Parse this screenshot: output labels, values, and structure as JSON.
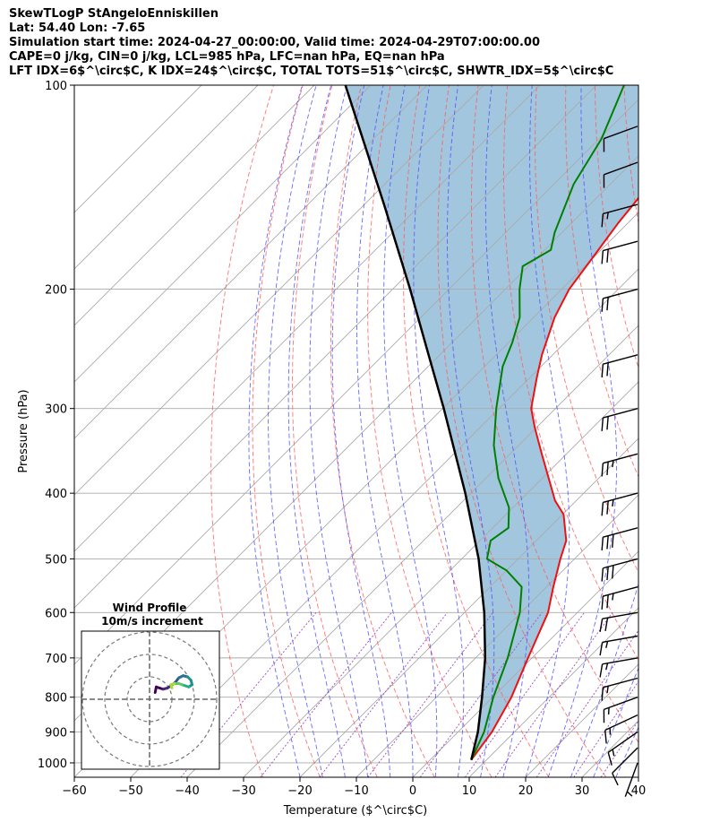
{
  "header": {
    "line1": "SkewTLogP StAngeloEnniskillen",
    "line2": "Lat: 54.40   Lon: -7.65",
    "line3": "Simulation start time: 2024-04-27_00:00:00, Valid time: 2024-04-29T07:00:00.00",
    "line4": "CAPE=0 j/kg, CIN=0 j/kg, LCL=985 hPa, LFC=nan hPa, EQ=nan hPa",
    "line5": "LFT IDX=6$^\\circ$C, K IDX=24$^\\circ$C, TOTAL TOTS=51$^\\circ$C, SHWTR_IDX=5$^\\circ$C"
  },
  "chart_data": {
    "type": "skewt",
    "xlabel": "Temperature ($^\\circ$C)",
    "ylabel": "Pressure (hPa)",
    "xlim": [
      -60,
      40
    ],
    "ylim": [
      1050,
      100
    ],
    "yscale": "log",
    "xticks": [
      -60,
      -50,
      -40,
      -30,
      -20,
      -10,
      0,
      10,
      20,
      30,
      40
    ],
    "xtick_labels": [
      "−60",
      "−50",
      "−40",
      "−30",
      "−20",
      "−10",
      "0",
      "10",
      "20",
      "30",
      "40"
    ],
    "yticks": [
      1000,
      900,
      800,
      700,
      600,
      500,
      400,
      300,
      200,
      100
    ],
    "ytick_labels": [
      "1000",
      "900",
      "800",
      "700",
      "600",
      "500",
      "400",
      "300",
      "200",
      "100"
    ],
    "grid": true,
    "colors": {
      "temperature": "#ee1111",
      "dewpoint": "#008000",
      "parcel": "#000000",
      "cin_fill": "#a3c6df",
      "dry_adiabat": "#ff5a5a",
      "moist_adiabat": "#4f4fff",
      "mixing_ratio": "#9b49c9",
      "isotherm": "#aaaaaa"
    },
    "temperature": [
      {
        "p": 990,
        "t": 7.3
      },
      {
        "p": 900,
        "t": 6.0
      },
      {
        "p": 800,
        "t": 3.3
      },
      {
        "p": 700,
        "t": -0.7
      },
      {
        "p": 600,
        "t": -5.2
      },
      {
        "p": 550,
        "t": -8.8
      },
      {
        "p": 500,
        "t": -12.5
      },
      {
        "p": 470,
        "t": -14.7
      },
      {
        "p": 430,
        "t": -19.8
      },
      {
        "p": 410,
        "t": -23.8
      },
      {
        "p": 350,
        "t": -34.4
      },
      {
        "p": 320,
        "t": -40.3
      },
      {
        "p": 300,
        "t": -44.3
      },
      {
        "p": 270,
        "t": -48.8
      },
      {
        "p": 250,
        "t": -51.9
      },
      {
        "p": 220,
        "t": -56.3
      },
      {
        "p": 200,
        "t": -58.7
      },
      {
        "p": 180,
        "t": -60.1
      },
      {
        "p": 160,
        "t": -61.7
      },
      {
        "p": 140,
        "t": -63.0
      },
      {
        "p": 120,
        "t": -64.1
      },
      {
        "p": 110,
        "t": -64.6
      },
      {
        "p": 100,
        "t": -65.0
      }
    ],
    "dewpoint": [
      {
        "p": 990,
        "t": 7.3
      },
      {
        "p": 900,
        "t": 4.6
      },
      {
        "p": 800,
        "t": 0.1
      },
      {
        "p": 700,
        "t": -4.3
      },
      {
        "p": 600,
        "t": -10.2
      },
      {
        "p": 550,
        "t": -14.4
      },
      {
        "p": 520,
        "t": -20.0
      },
      {
        "p": 500,
        "t": -25.5
      },
      {
        "p": 470,
        "t": -28.1
      },
      {
        "p": 450,
        "t": -27.2
      },
      {
        "p": 420,
        "t": -30.7
      },
      {
        "p": 380,
        "t": -37.8
      },
      {
        "p": 340,
        "t": -44.4
      },
      {
        "p": 300,
        "t": -50.5
      },
      {
        "p": 260,
        "t": -56.8
      },
      {
        "p": 240,
        "t": -59.3
      },
      {
        "p": 220,
        "t": -62.5
      },
      {
        "p": 200,
        "t": -67.5
      },
      {
        "p": 185,
        "t": -71.0
      },
      {
        "p": 175,
        "t": -68.9
      },
      {
        "p": 165,
        "t": -71.3
      },
      {
        "p": 140,
        "t": -76.5
      },
      {
        "p": 120,
        "t": -79.6
      },
      {
        "p": 100,
        "t": -85.1
      }
    ],
    "parcel": [
      {
        "p": 990,
        "t": 7.3
      },
      {
        "p": 900,
        "t": 3.5
      },
      {
        "p": 800,
        "t": -1.9
      },
      {
        "p": 700,
        "t": -8.3
      },
      {
        "p": 600,
        "t": -16.5
      },
      {
        "p": 500,
        "t": -27.0
      },
      {
        "p": 400,
        "t": -41.0
      },
      {
        "p": 300,
        "t": -59.8
      },
      {
        "p": 250,
        "t": -72.0
      },
      {
        "p": 200,
        "t": -86.9
      },
      {
        "p": 150,
        "t": -106.5
      },
      {
        "p": 100,
        "t": -134.5
      }
    ],
    "wind_barbs": [
      {
        "p": 1000,
        "speed_kt": 7,
        "dir_deg": 200
      },
      {
        "p": 950,
        "speed_kt": 12,
        "dir_deg": 225
      },
      {
        "p": 900,
        "speed_kt": 15,
        "dir_deg": 235
      },
      {
        "p": 850,
        "speed_kt": 17,
        "dir_deg": 245
      },
      {
        "p": 800,
        "speed_kt": 17,
        "dir_deg": 250
      },
      {
        "p": 750,
        "speed_kt": 16,
        "dir_deg": 255
      },
      {
        "p": 700,
        "speed_kt": 15,
        "dir_deg": 260
      },
      {
        "p": 650,
        "speed_kt": 16,
        "dir_deg": 260
      },
      {
        "p": 600,
        "speed_kt": 22,
        "dir_deg": 260
      },
      {
        "p": 550,
        "speed_kt": 25,
        "dir_deg": 255
      },
      {
        "p": 500,
        "speed_kt": 30,
        "dir_deg": 255
      },
      {
        "p": 450,
        "speed_kt": 28,
        "dir_deg": 255
      },
      {
        "p": 400,
        "speed_kt": 25,
        "dir_deg": 255
      },
      {
        "p": 350,
        "speed_kt": 25,
        "dir_deg": 255
      },
      {
        "p": 300,
        "speed_kt": 22,
        "dir_deg": 255
      },
      {
        "p": 250,
        "speed_kt": 22,
        "dir_deg": 255
      },
      {
        "p": 200,
        "speed_kt": 22,
        "dir_deg": 255
      },
      {
        "p": 170,
        "speed_kt": 20,
        "dir_deg": 255
      },
      {
        "p": 150,
        "speed_kt": 15,
        "dir_deg": 255
      },
      {
        "p": 130,
        "speed_kt": 12,
        "dir_deg": 250
      },
      {
        "p": 115,
        "speed_kt": 12,
        "dir_deg": 250
      }
    ],
    "hodograph": {
      "title": "Wind Profile",
      "subtitle": "10m/s increment",
      "ring_speeds": [
        10,
        20,
        30
      ],
      "points": [
        {
          "u": 2.5,
          "v": 3.0
        },
        {
          "u": 3.0,
          "v": 5.5
        },
        {
          "u": 4.5,
          "v": 5.0
        },
        {
          "u": 6.0,
          "v": 4.5
        },
        {
          "u": 8.0,
          "v": 5.0
        },
        {
          "u": 9.5,
          "v": 6.0
        },
        {
          "u": 11.5,
          "v": 7.5
        },
        {
          "u": 13.0,
          "v": 9.5
        },
        {
          "u": 15.0,
          "v": 10.5
        },
        {
          "u": 17.0,
          "v": 10.0
        },
        {
          "u": 18.5,
          "v": 8.5
        },
        {
          "u": 19.0,
          "v": 6.5
        },
        {
          "u": 17.5,
          "v": 5.5
        },
        {
          "u": 16.0,
          "v": 6.0
        },
        {
          "u": 14.5,
          "v": 6.5
        },
        {
          "u": 13.0,
          "v": 7.0
        },
        {
          "u": 11.0,
          "v": 7.0
        },
        {
          "u": 9.5,
          "v": 6.5
        },
        {
          "u": 10.0,
          "v": 5.0
        }
      ]
    }
  }
}
